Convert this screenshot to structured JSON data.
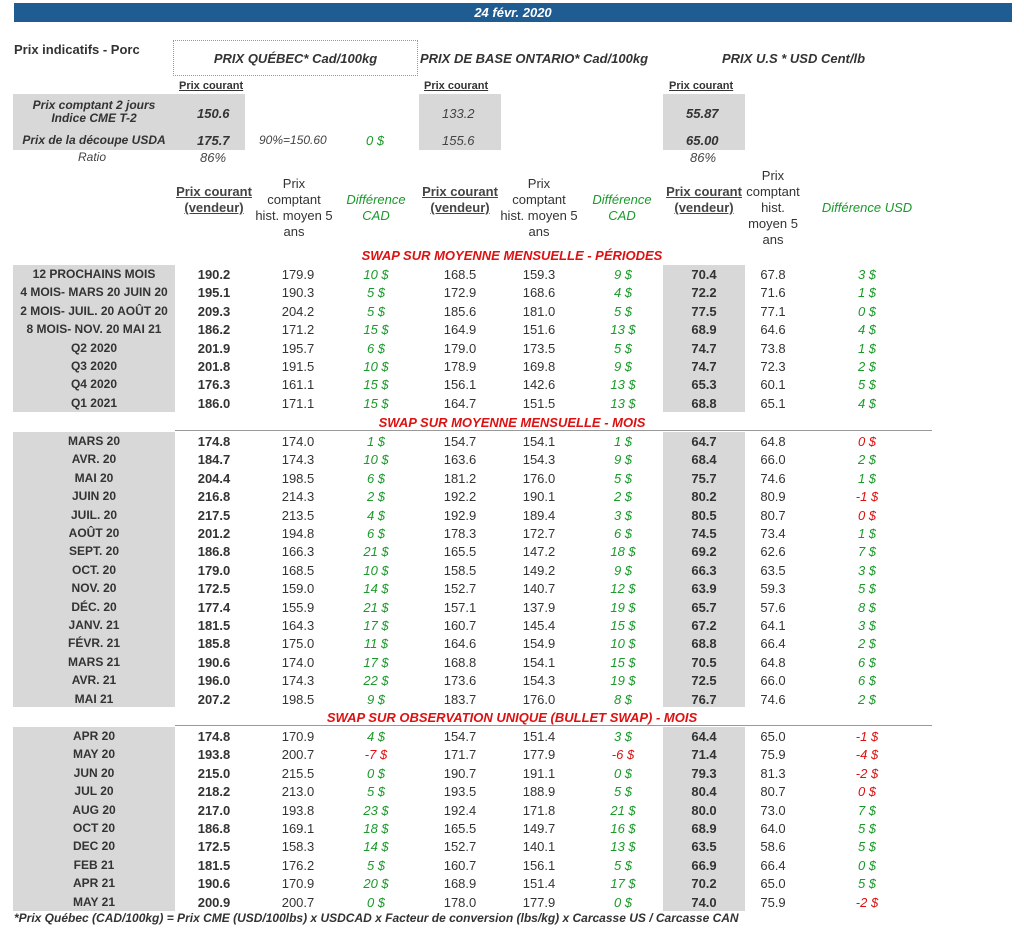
{
  "date": "24 févr. 2020",
  "header": {
    "title": "Prix indicatifs - Porc",
    "col_qc": "PRIX QUÉBEC* Cad/100kg",
    "col_on": "PRIX DE BASE ONTARIO* Cad/100kg",
    "col_us": "PRIX U.S * USD Cent/lb",
    "prix_courant": "Prix courant"
  },
  "top": {
    "label_comptant": "Prix comptant 2 jours Indice CME T-2",
    "label_decoupe": "Prix de la découpe USDA",
    "label_ratio": "Ratio",
    "qc_comptant": "150.6",
    "qc_decoupe": "175.7",
    "qc_ratio": "86%",
    "pct_note": "90%=150.60",
    "diff_note": "0 $",
    "on_comptant": "133.2",
    "on_decoupe": "155.6",
    "us_comptant": "55.87",
    "us_decoupe": "65.00",
    "us_ratio": "86%"
  },
  "colheads": {
    "courant": "Prix courant (vendeur)",
    "hist": "Prix comptant hist. moyen 5 ans",
    "diff_cad": "Différence CAD",
    "hist_us": "Prix comptant hist. moyen 5 ans",
    "diff_usd": "Différence USD"
  },
  "sections": [
    {
      "title": "SWAP SUR MOYENNE MENSUELLE - PÉRIODES",
      "rows": [
        [
          "12 PROCHAINS MOIS",
          "190.2",
          "179.9",
          "10 $",
          "168.5",
          "159.3",
          "9 $",
          "70.4",
          "67.8",
          "3 $"
        ],
        [
          "4 MOIS- MARS 20 JUIN 20",
          "195.1",
          "190.3",
          "5 $",
          "172.9",
          "168.6",
          "4 $",
          "72.2",
          "71.6",
          "1 $"
        ],
        [
          "2 MOIS- JUIL. 20 AOÛT 20",
          "209.3",
          "204.2",
          "5 $",
          "185.6",
          "181.0",
          "5 $",
          "77.5",
          "77.1",
          "0 $"
        ],
        [
          "8 MOIS- NOV. 20 MAI 21",
          "186.2",
          "171.2",
          "15 $",
          "164.9",
          "151.6",
          "13 $",
          "68.9",
          "64.6",
          "4 $"
        ],
        [
          "Q2 2020",
          "201.9",
          "195.7",
          "6 $",
          "179.0",
          "173.5",
          "5 $",
          "74.7",
          "73.8",
          "1 $"
        ],
        [
          "Q3 2020",
          "201.8",
          "191.5",
          "10 $",
          "178.9",
          "169.8",
          "9 $",
          "74.7",
          "72.3",
          "2 $"
        ],
        [
          "Q4 2020",
          "176.3",
          "161.1",
          "15 $",
          "156.1",
          "142.6",
          "13 $",
          "65.3",
          "60.1",
          "5 $"
        ],
        [
          "Q1 2021",
          "186.0",
          "171.1",
          "15 $",
          "164.7",
          "151.5",
          "13 $",
          "68.8",
          "65.1",
          "4 $"
        ]
      ]
    },
    {
      "title": "SWAP SUR MOYENNE MENSUELLE - MOIS",
      "rows": [
        [
          "MARS 20",
          "174.8",
          "174.0",
          "1 $",
          "154.7",
          "154.1",
          "1 $",
          "64.7",
          "64.8",
          "0 $"
        ],
        [
          "AVR. 20",
          "184.7",
          "174.3",
          "10 $",
          "163.6",
          "154.3",
          "9 $",
          "68.4",
          "66.0",
          "2 $"
        ],
        [
          "MAI 20",
          "204.4",
          "198.5",
          "6 $",
          "181.2",
          "176.0",
          "5 $",
          "75.7",
          "74.6",
          "1 $"
        ],
        [
          "JUIN 20",
          "216.8",
          "214.3",
          "2 $",
          "192.2",
          "190.1",
          "2 $",
          "80.2",
          "80.9",
          "-1 $"
        ],
        [
          "JUIL. 20",
          "217.5",
          "213.5",
          "4 $",
          "192.9",
          "189.4",
          "3 $",
          "80.5",
          "80.7",
          "0 $"
        ],
        [
          "AOÛT 20",
          "201.2",
          "194.8",
          "6 $",
          "178.3",
          "172.7",
          "6 $",
          "74.5",
          "73.4",
          "1 $"
        ],
        [
          "SEPT. 20",
          "186.8",
          "166.3",
          "21 $",
          "165.5",
          "147.2",
          "18 $",
          "69.2",
          "62.6",
          "7 $"
        ],
        [
          "OCT. 20",
          "179.0",
          "168.5",
          "10 $",
          "158.5",
          "149.2",
          "9 $",
          "66.3",
          "63.5",
          "3 $"
        ],
        [
          "NOV. 20",
          "172.5",
          "159.0",
          "14 $",
          "152.7",
          "140.7",
          "12 $",
          "63.9",
          "59.3",
          "5 $"
        ],
        [
          "DÉC. 20",
          "177.4",
          "155.9",
          "21 $",
          "157.1",
          "137.9",
          "19 $",
          "65.7",
          "57.6",
          "8 $"
        ],
        [
          "JANV. 21",
          "181.5",
          "164.3",
          "17 $",
          "160.7",
          "145.4",
          "15 $",
          "67.2",
          "64.1",
          "3 $"
        ],
        [
          "FÉVR. 21",
          "185.8",
          "175.0",
          "11 $",
          "164.6",
          "154.9",
          "10 $",
          "68.8",
          "66.4",
          "2 $"
        ],
        [
          "MARS 21",
          "190.6",
          "174.0",
          "17 $",
          "168.8",
          "154.1",
          "15 $",
          "70.5",
          "64.8",
          "6 $"
        ],
        [
          "AVR. 21",
          "196.0",
          "174.3",
          "22 $",
          "173.6",
          "154.3",
          "19 $",
          "72.5",
          "66.0",
          "6 $"
        ],
        [
          "MAI 21",
          "207.2",
          "198.5",
          "9 $",
          "183.7",
          "176.0",
          "8 $",
          "76.7",
          "74.6",
          "2 $"
        ]
      ]
    },
    {
      "title": "SWAP SUR OBSERVATION UNIQUE (BULLET SWAP) - MOIS",
      "rows": [
        [
          "APR 20",
          "174.8",
          "170.9",
          "4 $",
          "154.7",
          "151.4",
          "3 $",
          "64.4",
          "65.0",
          "-1 $"
        ],
        [
          "MAY 20",
          "193.8",
          "200.7",
          "-7 $",
          "171.7",
          "177.9",
          "-6 $",
          "71.4",
          "75.9",
          "-4 $"
        ],
        [
          "JUN 20",
          "215.0",
          "215.5",
          "0 $",
          "190.7",
          "191.1",
          "0 $",
          "79.3",
          "81.3",
          "-2 $"
        ],
        [
          "JUL 20",
          "218.2",
          "213.0",
          "5 $",
          "193.5",
          "188.9",
          "5 $",
          "80.4",
          "80.7",
          "0 $"
        ],
        [
          "AUG 20",
          "217.0",
          "193.8",
          "23 $",
          "192.4",
          "171.8",
          "21 $",
          "80.0",
          "73.0",
          "7 $"
        ],
        [
          "OCT 20",
          "186.8",
          "169.1",
          "18 $",
          "165.5",
          "149.7",
          "16 $",
          "68.9",
          "64.0",
          "5 $"
        ],
        [
          "DEC 20",
          "172.5",
          "158.3",
          "14 $",
          "152.7",
          "140.1",
          "13 $",
          "63.5",
          "58.6",
          "5 $"
        ],
        [
          "FEB 21",
          "181.5",
          "176.2",
          "5 $",
          "160.7",
          "156.1",
          "5 $",
          "66.9",
          "66.4",
          "0 $"
        ],
        [
          "APR 21",
          "190.6",
          "170.9",
          "20 $",
          "168.9",
          "151.4",
          "17 $",
          "70.2",
          "65.0",
          "5 $"
        ],
        [
          "MAY 21",
          "200.9",
          "200.7",
          "0 $",
          "178.0",
          "177.9",
          "0 $",
          "74.0",
          "75.9",
          "-2 $"
        ]
      ]
    }
  ],
  "footnote": "*Prix Québec (CAD/100kg) = Prix CME (USD/100lbs) x USDCAD x Facteur de conversion (lbs/kg) x Carcasse US / Carcasse CAN",
  "colors": {
    "banner": "#1f5c91",
    "gray": "#d8d8d8",
    "positive": "#1a9a2a",
    "negative": "#dd1111"
  }
}
